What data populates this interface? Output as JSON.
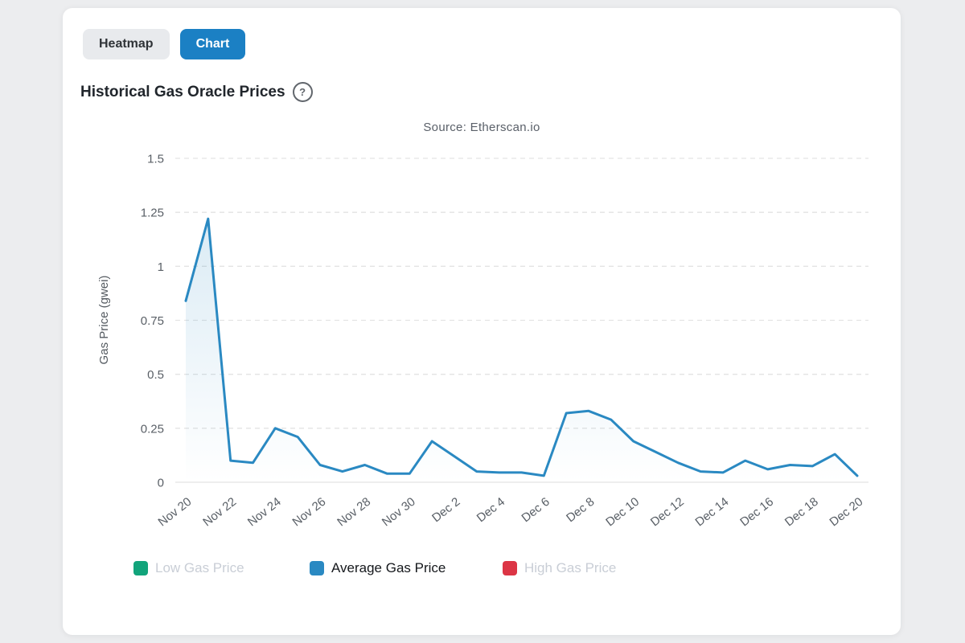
{
  "colors": {
    "accent_blue": "#1b80c4",
    "line_blue": "#2a89c2",
    "legend_green": "#12a47b",
    "legend_red": "#dc3545",
    "grid": "#e3e3e3",
    "axis_text": "#595f66"
  },
  "tabs": {
    "heatmap_label": "Heatmap",
    "chart_label": "Chart"
  },
  "title": "Historical Gas Oracle Prices",
  "help_icon": "?",
  "chart_data": {
    "type": "line",
    "title": "Source: Etherscan.io",
    "xlabel": "",
    "ylabel": "Gas Price (gwei)",
    "ylim": [
      0,
      1.5
    ],
    "yticks": [
      0,
      0.25,
      0.5,
      0.75,
      1,
      1.25,
      1.5
    ],
    "ytick_labels": [
      "0",
      "0.25",
      "0.5",
      "0.75",
      "1",
      "1.25",
      "1.5"
    ],
    "grid": "horizontal-dashed",
    "legend_position": "bottom",
    "x": [
      "Nov 20",
      "Nov 21",
      "Nov 22",
      "Nov 23",
      "Nov 24",
      "Nov 25",
      "Nov 26",
      "Nov 27",
      "Nov 28",
      "Nov 29",
      "Nov 30",
      "Dec 1",
      "Dec 2",
      "Dec 3",
      "Dec 4",
      "Dec 5",
      "Dec 6",
      "Dec 7",
      "Dec 8",
      "Dec 9",
      "Dec 10",
      "Dec 11",
      "Dec 12",
      "Dec 13",
      "Dec 14",
      "Dec 15",
      "Dec 16",
      "Dec 17",
      "Dec 18",
      "Dec 19",
      "Dec 20"
    ],
    "xtick_labels": [
      "Nov 20",
      "Nov 22",
      "Nov 24",
      "Nov 26",
      "Nov 28",
      "Nov 30",
      "Dec 2",
      "Dec 4",
      "Dec 6",
      "Dec 8",
      "Dec 10",
      "Dec 12",
      "Dec 14",
      "Dec 16",
      "Dec 18",
      "Dec 20"
    ],
    "series": [
      {
        "name": "Average Gas Price",
        "color": "#2a89c2",
        "visible": true,
        "values": [
          0.84,
          1.22,
          0.1,
          0.09,
          0.25,
          0.21,
          0.08,
          0.05,
          0.08,
          0.04,
          0.04,
          0.19,
          0.12,
          0.05,
          0.045,
          0.045,
          0.03,
          0.32,
          0.33,
          0.29,
          0.19,
          0.14,
          0.09,
          0.05,
          0.045,
          0.1,
          0.06,
          0.08,
          0.075,
          0.13,
          0.03
        ]
      }
    ]
  },
  "legend": [
    {
      "label": "Low Gas Price",
      "color": "#12a47b",
      "active": false
    },
    {
      "label": "Average Gas Price",
      "color": "#2a89c2",
      "active": true
    },
    {
      "label": "High Gas Price",
      "color": "#dc3545",
      "active": false
    }
  ]
}
